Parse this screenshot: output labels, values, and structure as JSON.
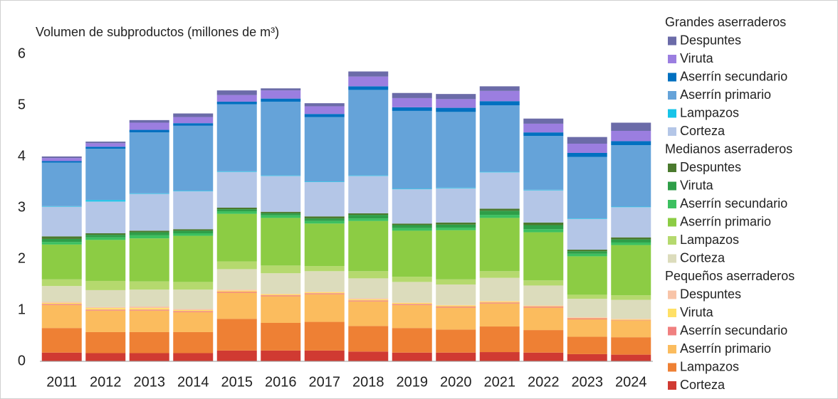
{
  "chart_data": {
    "type": "stacked_bar",
    "title": "Volumen de subproductos (millones de m³)",
    "categories": [
      "2011",
      "2012",
      "2013",
      "2014",
      "2015",
      "2016",
      "2017",
      "2018",
      "2019",
      "2020",
      "2021",
      "2022",
      "2023",
      "2024"
    ],
    "ylim": [
      0,
      6
    ],
    "yticks": [
      0,
      1,
      2,
      3,
      4,
      5,
      6
    ],
    "grid": false,
    "legend_groups": [
      "Grandes aserraderos",
      "Medianos aserraderos",
      "Pequeños aserraderos"
    ],
    "series": [
      {
        "name": "Corteza",
        "color": "#d03a32",
        "values": [
          0.17,
          0.16,
          0.16,
          0.16,
          0.21,
          0.21,
          0.21,
          0.19,
          0.17,
          0.17,
          0.18,
          0.17,
          0.14,
          0.13
        ]
      },
      {
        "name": "Lampazos",
        "color": "#ee8034",
        "values": [
          0.48,
          0.41,
          0.41,
          0.41,
          0.62,
          0.54,
          0.56,
          0.5,
          0.48,
          0.45,
          0.5,
          0.44,
          0.34,
          0.34
        ]
      },
      {
        "name": "Aserrín primario",
        "color": "#fbbc5e",
        "values": [
          0.45,
          0.42,
          0.42,
          0.39,
          0.51,
          0.52,
          0.54,
          0.48,
          0.45,
          0.43,
          0.45,
          0.44,
          0.34,
          0.33
        ]
      },
      {
        "name": "Aserrín secundario",
        "color": "#f08080",
        "values": [
          0.02,
          0.02,
          0.02,
          0.02,
          0.02,
          0.02,
          0.02,
          0.02,
          0.02,
          0.02,
          0.02,
          0.02,
          0.02,
          0.01
        ]
      },
      {
        "name": "Viruta",
        "color": "#ffe066",
        "values": [
          0.02,
          0.03,
          0.03,
          0.02,
          0.02,
          0.02,
          0.02,
          0.02,
          0.02,
          0.02,
          0.02,
          0.01,
          0.01,
          0.01
        ]
      },
      {
        "name": "Despuntes",
        "color": "#f8c4a8",
        "values": [
          0.02,
          0.02,
          0.03,
          0.02,
          0.02,
          0.01,
          0.01,
          0.02,
          0.01,
          0.01,
          0.01,
          0.01,
          0.01,
          0.01
        ]
      },
      {
        "name": "Corteza",
        "color": "#dcdcbc",
        "values": [
          0.31,
          0.33,
          0.33,
          0.38,
          0.4,
          0.4,
          0.4,
          0.39,
          0.4,
          0.4,
          0.45,
          0.39,
          0.36,
          0.37
        ]
      },
      {
        "name": "Lampazos",
        "color": "#b5d96e",
        "values": [
          0.13,
          0.18,
          0.16,
          0.15,
          0.15,
          0.15,
          0.1,
          0.14,
          0.1,
          0.1,
          0.13,
          0.1,
          0.08,
          0.09
        ]
      },
      {
        "name": "Aserrín primario",
        "color": "#8ccc44",
        "values": [
          0.68,
          0.8,
          0.84,
          0.9,
          0.93,
          0.93,
          0.83,
          0.98,
          0.9,
          0.96,
          1.04,
          0.94,
          0.75,
          0.98
        ]
      },
      {
        "name": "Aserrín secundario",
        "color": "#3cc060",
        "values": [
          0.05,
          0.05,
          0.06,
          0.05,
          0.05,
          0.05,
          0.05,
          0.05,
          0.05,
          0.05,
          0.06,
          0.06,
          0.05,
          0.05
        ]
      },
      {
        "name": "Viruta",
        "color": "#2e9e48",
        "values": [
          0.06,
          0.05,
          0.06,
          0.05,
          0.04,
          0.04,
          0.05,
          0.07,
          0.06,
          0.06,
          0.08,
          0.08,
          0.05,
          0.06
        ]
      },
      {
        "name": "Despuntes",
        "color": "#4b7a2e",
        "values": [
          0.05,
          0.03,
          0.03,
          0.03,
          0.03,
          0.03,
          0.04,
          0.03,
          0.03,
          0.04,
          0.04,
          0.05,
          0.03,
          0.04
        ]
      },
      {
        "name": "Corteza",
        "color": "#b4c6e7",
        "values": [
          0.58,
          0.62,
          0.72,
          0.74,
          0.7,
          0.7,
          0.67,
          0.73,
          0.67,
          0.67,
          0.71,
          0.63,
          0.6,
          0.59
        ]
      },
      {
        "name": "Lampazos",
        "color": "#17c4e8",
        "values": [
          0.01,
          0.03,
          0.01,
          0.01,
          0.01,
          0.01,
          0.01,
          0.01,
          0.01,
          0.01,
          0.01,
          0.01,
          0.01,
          0.01
        ]
      },
      {
        "name": "Aserrín primario",
        "color": "#65a3d9",
        "values": [
          0.85,
          1.0,
          1.19,
          1.27,
          1.31,
          1.44,
          1.26,
          1.67,
          1.52,
          1.48,
          1.3,
          1.05,
          1.2,
          1.2
        ]
      },
      {
        "name": "Aserrín secundario",
        "color": "#0070c0",
        "values": [
          0.03,
          0.04,
          0.05,
          0.05,
          0.05,
          0.06,
          0.06,
          0.07,
          0.07,
          0.08,
          0.08,
          0.07,
          0.08,
          0.08
        ]
      },
      {
        "name": "Viruta",
        "color": "#9b7ee0",
        "values": [
          0.06,
          0.07,
          0.14,
          0.12,
          0.13,
          0.16,
          0.15,
          0.19,
          0.18,
          0.17,
          0.2,
          0.17,
          0.18,
          0.2
        ]
      },
      {
        "name": "Despuntes",
        "color": "#6b6ba8",
        "values": [
          0.03,
          0.03,
          0.05,
          0.07,
          0.09,
          0.04,
          0.06,
          0.1,
          0.1,
          0.1,
          0.09,
          0.1,
          0.13,
          0.16
        ]
      }
    ]
  }
}
